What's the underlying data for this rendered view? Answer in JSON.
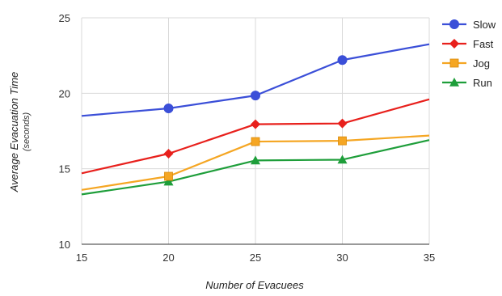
{
  "chart_data": {
    "type": "line",
    "x": [
      15,
      20,
      25,
      30,
      35
    ],
    "x_tick_labels": [
      "15",
      "20",
      "25",
      "30",
      "35"
    ],
    "y_tick_labels": [
      "10",
      "15",
      "20",
      "25"
    ],
    "xlim": [
      15,
      35
    ],
    "ylim": [
      10,
      25
    ],
    "xlabel": "Number of Evacuees",
    "ylabel": "Average Evacuation Time",
    "ylabel_sub": "(seconds)",
    "grid": true,
    "legend_position": "right",
    "series": [
      {
        "name": "Slow",
        "color": "#3b4fd8",
        "marker": "circle",
        "values": [
          18.5,
          19.0,
          19.85,
          22.2,
          23.25
        ]
      },
      {
        "name": "Fast",
        "color": "#e8201c",
        "marker": "diamond",
        "values": [
          14.7,
          16.0,
          17.95,
          18.0,
          19.6
        ]
      },
      {
        "name": "Jog",
        "color": "#f5a623",
        "marker": "square",
        "values": [
          13.6,
          14.5,
          16.8,
          16.85,
          17.2
        ]
      },
      {
        "name": "Run",
        "color": "#1e9e3a",
        "marker": "triangle",
        "values": [
          13.3,
          14.15,
          15.55,
          15.6,
          16.9
        ]
      }
    ]
  }
}
